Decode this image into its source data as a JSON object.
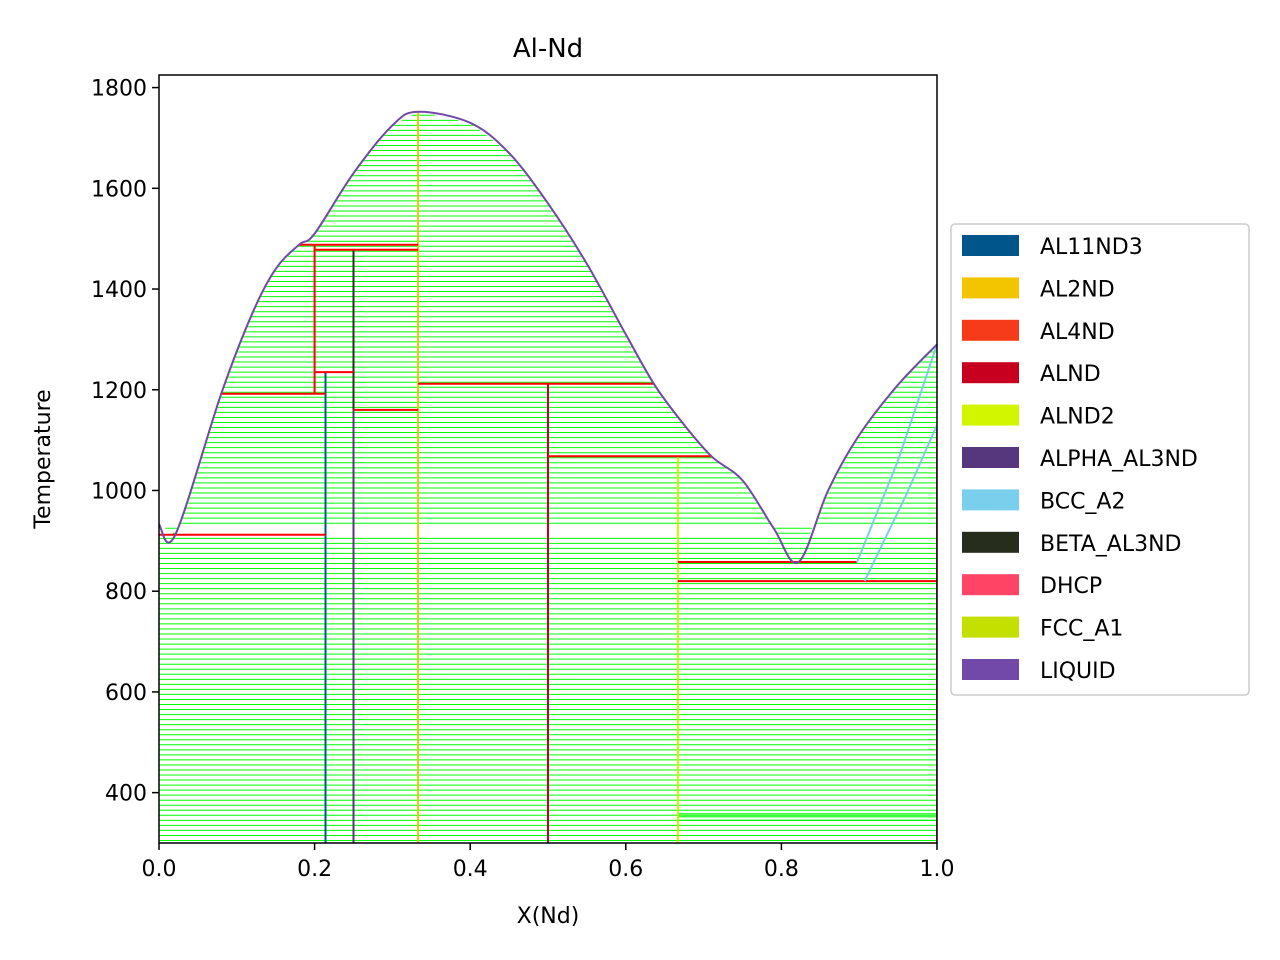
{
  "chart_data": {
    "type": "phase-diagram",
    "title": "Al-Nd",
    "xlabel": "X(Nd)",
    "ylabel": "Temperature",
    "xlim": [
      0,
      1
    ],
    "ylim": [
      300,
      1825
    ],
    "x_ticks": [
      "0.0",
      "0.2",
      "0.4",
      "0.6",
      "0.8",
      "1.0"
    ],
    "y_ticks": [
      "400",
      "600",
      "800",
      "1000",
      "1200",
      "1400",
      "1600",
      "1800"
    ],
    "legend_position": "center-right, outside plot",
    "tie_line_color": "#00ff00",
    "invariant_line_color": "#ff0000",
    "legend": [
      {
        "label": "AL11ND3",
        "color": "#00558a"
      },
      {
        "label": "AL2ND",
        "color": "#f2c500"
      },
      {
        "label": "AL4ND",
        "color": "#f53b1a"
      },
      {
        "label": "ALND",
        "color": "#c8001f"
      },
      {
        "label": "ALND2",
        "color": "#d2f500"
      },
      {
        "label": "ALPHA_AL3ND",
        "color": "#56377d"
      },
      {
        "label": "BCC_A2",
        "color": "#7acfec"
      },
      {
        "label": "BETA_AL3ND",
        "color": "#262d1c"
      },
      {
        "label": "DHCP",
        "color": "#ff4466"
      },
      {
        "label": "FCC_A1",
        "color": "#c4e000"
      },
      {
        "label": "LIQUID",
        "color": "#7249a8"
      }
    ],
    "liquidus": [
      [
        0.0,
        933
      ],
      [
        0.021,
        912
      ],
      [
        0.08,
        1192
      ],
      [
        0.12,
        1352
      ],
      [
        0.15,
        1440
      ],
      [
        0.18,
        1488
      ],
      [
        0.2,
        1510
      ],
      [
        0.25,
        1630
      ],
      [
        0.3,
        1725
      ],
      [
        0.333,
        1752
      ],
      [
        0.4,
        1730
      ],
      [
        0.45,
        1670
      ],
      [
        0.5,
        1570
      ],
      [
        0.55,
        1450
      ],
      [
        0.6,
        1310
      ],
      [
        0.636,
        1212
      ],
      [
        0.67,
        1140
      ],
      [
        0.71,
        1068
      ],
      [
        0.75,
        1020
      ],
      [
        0.79,
        925
      ],
      [
        0.822,
        858
      ],
      [
        0.86,
        1000
      ],
      [
        0.9,
        1110
      ],
      [
        0.95,
        1210
      ],
      [
        1.0,
        1290
      ]
    ],
    "bcc_boundaries": [
      {
        "name": "BCC_A2",
        "points": [
          [
            0.897,
            857
          ],
          [
            0.95,
            1060
          ],
          [
            1.0,
            1290
          ]
        ]
      },
      {
        "name": "BCC_A2",
        "points": [
          [
            0.907,
            820
          ],
          [
            0.96,
            990
          ],
          [
            1.0,
            1130
          ]
        ]
      }
    ],
    "compounds": [
      {
        "phase": "AL11ND3",
        "x": 0.214,
        "tmin": 300,
        "tmax": 1235
      },
      {
        "phase": "BETA_AL3ND",
        "x": 0.25,
        "tmin": 1160,
        "tmax": 1478
      },
      {
        "phase": "ALPHA_AL3ND",
        "x": 0.25,
        "tmin": 300,
        "tmax": 1160
      },
      {
        "phase": "AL2ND",
        "x": 0.333,
        "tmin": 300,
        "tmax": 1752
      },
      {
        "phase": "ALND",
        "x": 0.5,
        "tmin": 300,
        "tmax": 1212
      },
      {
        "phase": "ALND2",
        "x": 0.667,
        "tmin": 300,
        "tmax": 1068
      },
      {
        "phase": "DHCP",
        "x": 1.0,
        "tmin": 300,
        "tmax": 1130
      }
    ],
    "invariants": [
      {
        "T": 912,
        "x1": 0.0,
        "x2": 0.214
      },
      {
        "T": 1192,
        "x1": 0.08,
        "x2": 0.214
      },
      {
        "T": 1488,
        "x1": 0.18,
        "x2": 0.333
      },
      {
        "T": 1478,
        "x1": 0.2,
        "x2": 0.333
      },
      {
        "T": 1235,
        "x1": 0.2,
        "x2": 0.25
      },
      {
        "T": 1160,
        "x1": 0.25,
        "x2": 0.333
      },
      {
        "T": 1212,
        "x1": 0.333,
        "x2": 0.636
      },
      {
        "T": 1068,
        "x1": 0.5,
        "x2": 0.71
      },
      {
        "T": 858,
        "x1": 0.667,
        "x2": 0.897
      },
      {
        "T": 820,
        "x1": 0.667,
        "x2": 1.0
      }
    ],
    "vertical_boundaries": [
      {
        "x": 0.2,
        "tmin": 1192,
        "tmax": 1488
      }
    ],
    "tie_line_spacing": 10
  }
}
